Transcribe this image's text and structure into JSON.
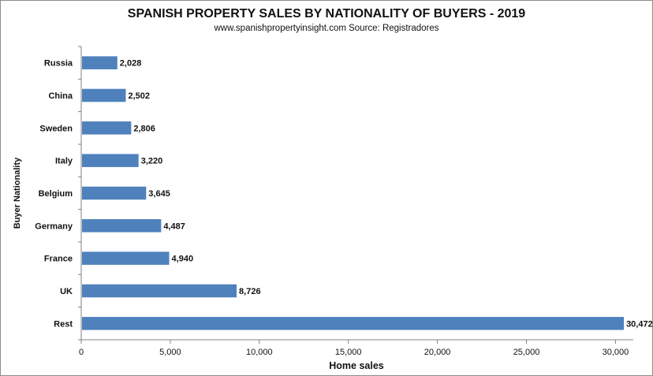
{
  "chart_data": {
    "type": "bar",
    "orientation": "horizontal",
    "title": "SPANISH PROPERTY SALES BY NATIONALITY OF BUYERS -  2019",
    "subtitle": "www.spanishpropertyinsight.com Source:  Registradores",
    "xlabel": "Home sales",
    "ylabel": "Buyer Nationality",
    "categories": [
      "Russia",
      "China",
      "Sweden",
      "Italy",
      "Belgium",
      "Germany",
      "France",
      "UK",
      "Rest"
    ],
    "values": [
      2028,
      2502,
      2806,
      3220,
      3645,
      4487,
      4940,
      8726,
      30472
    ],
    "value_labels": [
      "2,028",
      "2,502",
      "2,806",
      "3,220",
      "3,645",
      "4,487",
      "4,940",
      "8,726",
      "30,472"
    ],
    "xlim": [
      0,
      31000
    ],
    "xticks": [
      0,
      5000,
      10000,
      15000,
      20000,
      25000,
      30000
    ],
    "xtick_labels": [
      "0",
      "5,000",
      "10,000",
      "15,000",
      "20,000",
      "25,000",
      "30,000"
    ],
    "bar_color": "#4f81bd",
    "grid": false,
    "legend": false
  }
}
